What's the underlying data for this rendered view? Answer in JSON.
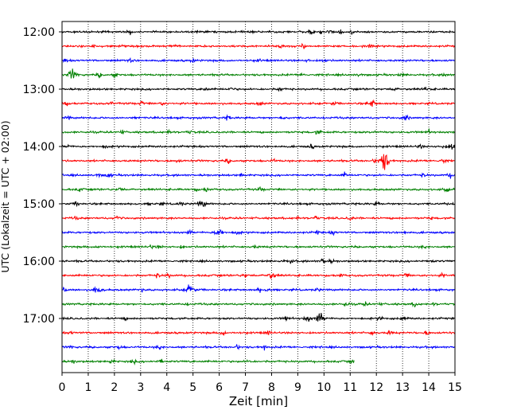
{
  "chart_data": {
    "type": "line",
    "title": "",
    "xlabel": "Zeit  [min]",
    "ylabel": "UTC (Lokalzeit = UTC + 02:00)",
    "xlim": [
      0,
      15
    ],
    "x_ticks": [
      "0",
      "1",
      "2",
      "3",
      "4",
      "5",
      "6",
      "7",
      "8",
      "9",
      "10",
      "11",
      "12",
      "13",
      "14",
      "15"
    ],
    "y_tick_labels": [
      "12:00",
      "13:00",
      "14:00",
      "15:00",
      "16:00",
      "17:00"
    ],
    "grid": "vertical-dotted",
    "colors": [
      "#000000",
      "#ff0000",
      "#0000ff",
      "#008000"
    ],
    "rows": [
      {
        "start": "12:00",
        "end_min": 15,
        "color": "#000000"
      },
      {
        "start": "12:15",
        "end_min": 15,
        "color": "#ff0000"
      },
      {
        "start": "12:30",
        "end_min": 15,
        "color": "#0000ff"
      },
      {
        "start": "12:45",
        "end_min": 15,
        "color": "#008000"
      },
      {
        "start": "13:00",
        "end_min": 15,
        "color": "#000000"
      },
      {
        "start": "13:15",
        "end_min": 15,
        "color": "#ff0000"
      },
      {
        "start": "13:30",
        "end_min": 15,
        "color": "#0000ff"
      },
      {
        "start": "13:45",
        "end_min": 15,
        "color": "#008000"
      },
      {
        "start": "14:00",
        "end_min": 15,
        "color": "#000000"
      },
      {
        "start": "14:15",
        "end_min": 15,
        "color": "#ff0000"
      },
      {
        "start": "14:30",
        "end_min": 15,
        "color": "#0000ff"
      },
      {
        "start": "14:45",
        "end_min": 15,
        "color": "#008000"
      },
      {
        "start": "15:00",
        "end_min": 15,
        "color": "#000000"
      },
      {
        "start": "15:15",
        "end_min": 15,
        "color": "#ff0000"
      },
      {
        "start": "15:30",
        "end_min": 15,
        "color": "#0000ff"
      },
      {
        "start": "15:45",
        "end_min": 15,
        "color": "#008000"
      },
      {
        "start": "16:00",
        "end_min": 15,
        "color": "#000000"
      },
      {
        "start": "16:15",
        "end_min": 15,
        "color": "#ff0000"
      },
      {
        "start": "16:30",
        "end_min": 15,
        "color": "#0000ff"
      },
      {
        "start": "16:45",
        "end_min": 15,
        "color": "#008000"
      },
      {
        "start": "17:00",
        "end_min": 15,
        "color": "#000000"
      },
      {
        "start": "17:15",
        "end_min": 15,
        "color": "#ff0000"
      },
      {
        "start": "17:30",
        "end_min": 15,
        "color": "#0000ff"
      },
      {
        "start": "17:45",
        "end_min": 11.15,
        "color": "#008000"
      }
    ],
    "events": [
      {
        "row": 9,
        "x": 12.3,
        "amplitude": 1.0
      },
      {
        "row": 8,
        "x": 14.9,
        "amplitude": 0.45
      },
      {
        "row": 3,
        "x": 0.4,
        "amplitude": 0.5
      },
      {
        "row": 5,
        "x": 11.8,
        "amplitude": 0.35
      },
      {
        "row": 18,
        "x": 4.9,
        "amplitude": 0.45
      },
      {
        "row": 18,
        "x": 1.35,
        "amplitude": 0.35
      },
      {
        "row": 20,
        "x": 9.85,
        "amplitude": 0.5
      },
      {
        "row": 14,
        "x": 5.95,
        "amplitude": 0.35
      },
      {
        "row": 12,
        "x": 5.35,
        "amplitude": 0.3
      },
      {
        "row": 17,
        "x": 8.0,
        "amplitude": 0.3
      }
    ]
  }
}
